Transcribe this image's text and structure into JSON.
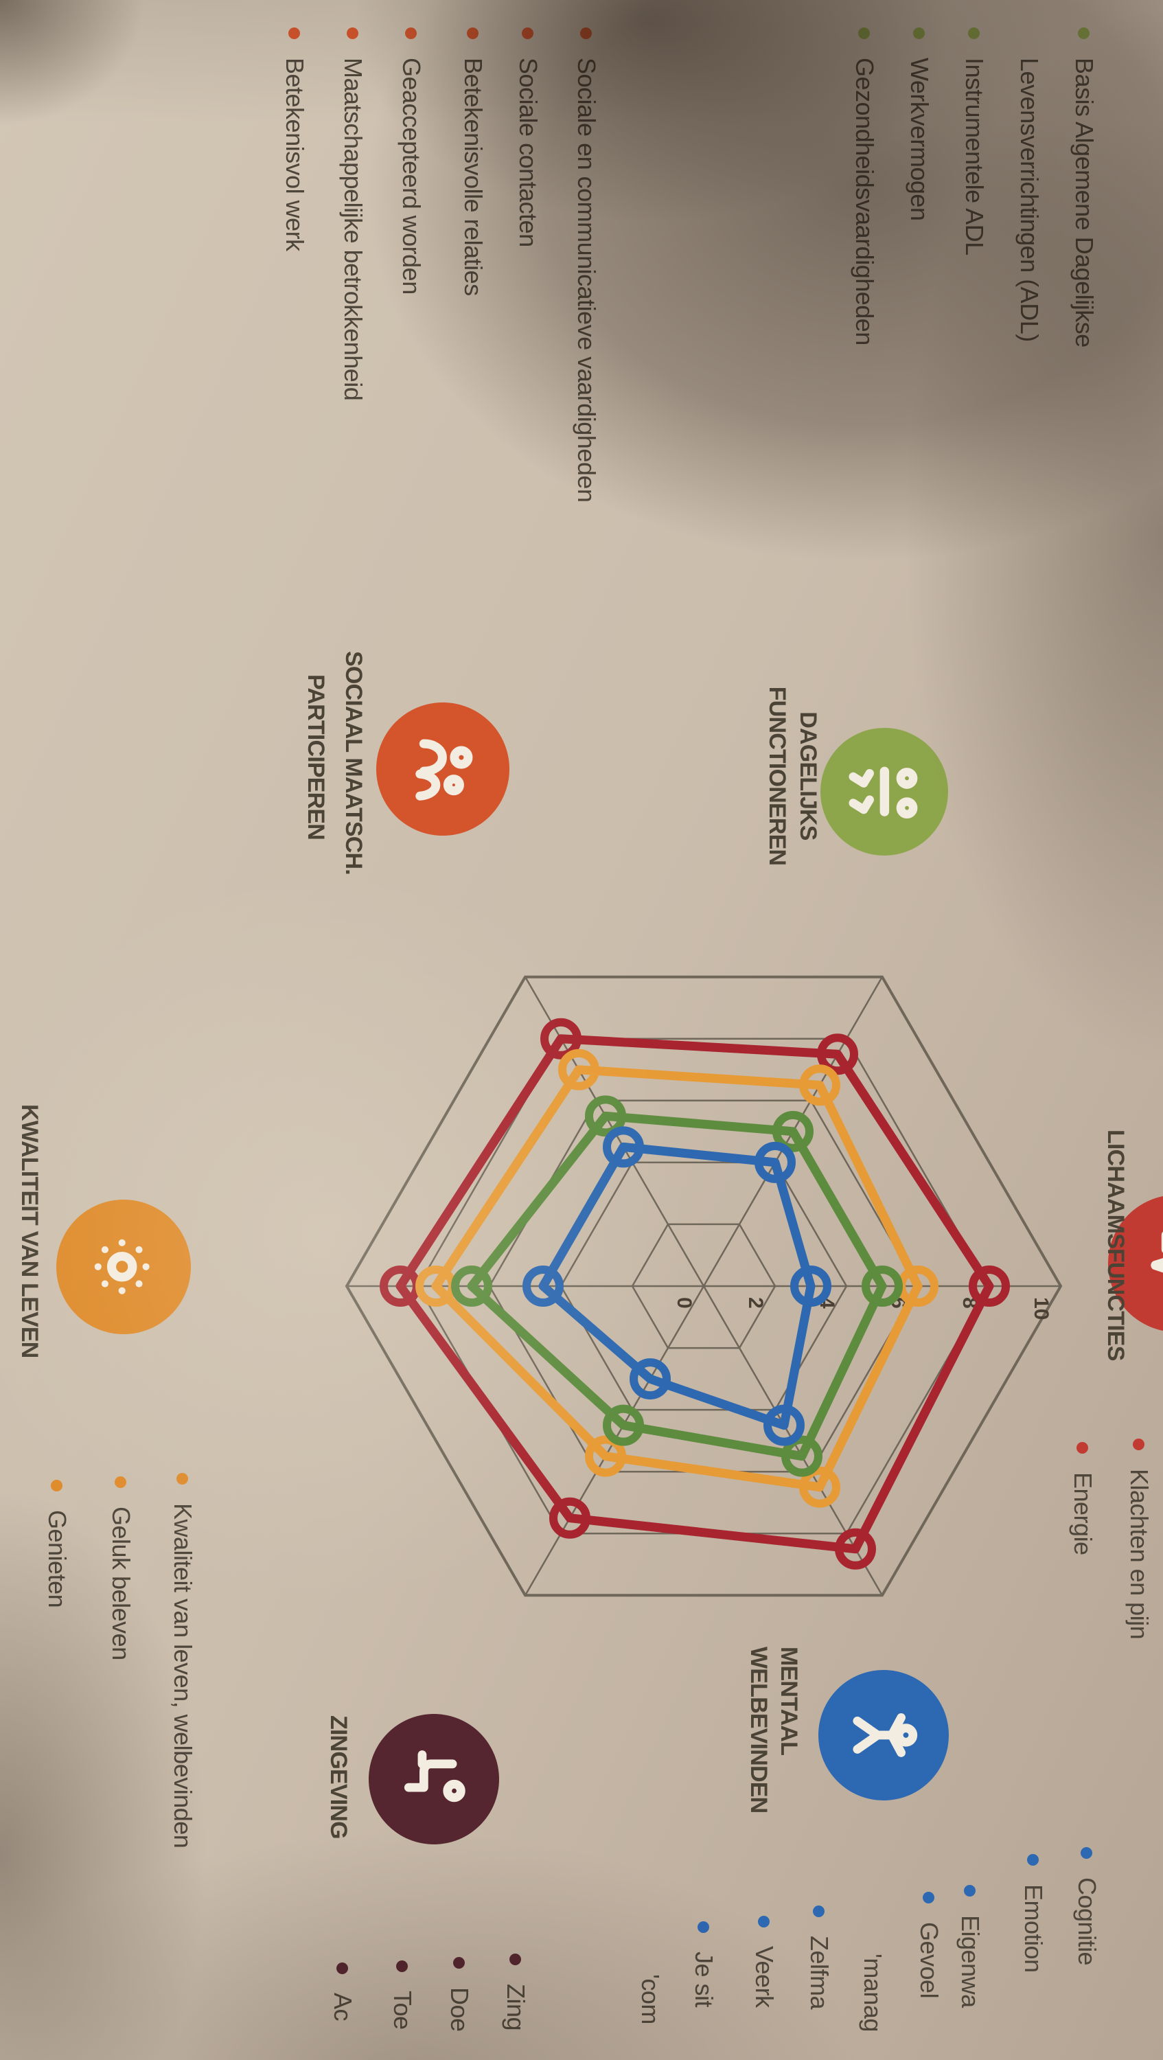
{
  "document": {
    "kind": "positieve-gezondheid-spinnenweb-fotopagina"
  },
  "sections": {
    "dagelijks_functioneren": {
      "label_line1": "DAGELIJKS",
      "label_line2": "FUNCTIONEREN",
      "color": "#8ea64b",
      "items": [
        {
          "text": "Basis Algemene Dagelijkse",
          "bullet": true
        },
        {
          "text": "Levensverrichtingen (ADL)",
          "bullet": false
        },
        {
          "text": "Instrumentele ADL",
          "bullet": true
        },
        {
          "text": "Werkvermogen",
          "bullet": true
        },
        {
          "text": "Gezondheidsvaardigheden",
          "bullet": true
        }
      ]
    },
    "lichaamsfuncties": {
      "label": "LICHAAMSFUNCTIES",
      "color": "#c23b32",
      "items": [
        {
          "text": "Klachten en pijn",
          "bullet": true
        },
        {
          "text": "Energie",
          "bullet": true
        }
      ]
    },
    "mentaal_welbevinden": {
      "label_line1": "MENTAAL",
      "label_line2": "WELBEVINDEN",
      "color": "#2d68b2",
      "items": [
        {
          "text": "Cognitie",
          "bullet": true
        },
        {
          "text": "Emotion",
          "bullet": true
        },
        {
          "text": "Eigenwa",
          "bullet": true
        },
        {
          "text": "Gevoel",
          "bullet": true
        },
        {
          "text": "'manag",
          "bullet": false
        },
        {
          "text": "Zelfma",
          "bullet": true
        },
        {
          "text": "Veerk",
          "bullet": true
        },
        {
          "text": "Je sit",
          "bullet": true
        },
        {
          "text": "'com",
          "bullet": false
        }
      ]
    },
    "zingeving": {
      "label": "ZINGEVING",
      "color": "#55262f",
      "items": [
        {
          "text": "Zing",
          "bullet": true
        },
        {
          "text": "Doe",
          "bullet": true
        },
        {
          "text": "Toe",
          "bullet": true
        },
        {
          "text": "Ac",
          "bullet": true
        }
      ]
    },
    "kwaliteit_van_leven": {
      "label": "KWALITEIT VAN LEVEN",
      "color": "#df8c2d",
      "items": [
        {
          "text": "Kwaliteit van leven, welbevinden",
          "bullet": true
        },
        {
          "text": "Geluk beleven",
          "bullet": true
        },
        {
          "text": "Genieten",
          "bullet": true
        }
      ]
    },
    "sociaal_maatschappelijk_participeren": {
      "label_line1": "SOCIAAL MAATSCH.",
      "label_line2": "PARTICIPEREN",
      "color": "#d4552c",
      "items": [
        {
          "text": "Sociale en communicatieve vaardigheden",
          "bullet": true
        },
        {
          "text": "Sociale contacten",
          "bullet": true
        },
        {
          "text": "Betekenisvolle relaties",
          "bullet": true
        },
        {
          "text": "Geaccepteerd worden",
          "bullet": true
        },
        {
          "text": "Maatschappelijke betrokkenheid",
          "bullet": true
        },
        {
          "text": "Betekenisvol werk",
          "bullet": true
        }
      ]
    }
  },
  "chart_data": {
    "type": "radar",
    "title": "",
    "axes": [
      "Lichaamsfuncties",
      "Mentaal welbevinden",
      "Zingeving",
      "Kwaliteit van leven",
      "Sociaal-maatschappelijk participeren",
      "Dagelijks functioneren"
    ],
    "scale": {
      "min": 0,
      "max": 10,
      "tick_step": 2,
      "tick_labels": [
        "0",
        "2",
        "4",
        "6",
        "8",
        "10"
      ]
    },
    "grid": {
      "rings": [
        2,
        4,
        6,
        8,
        10
      ],
      "color": "#6f675a",
      "spokes": 6
    },
    "legend": "none visible",
    "series": [
      {
        "name": "rood",
        "color": "#a8252f",
        "values": [
          8,
          8.5,
          7.5,
          8.5,
          8,
          7.5
        ]
      },
      {
        "name": "oranje",
        "color": "#e79b36",
        "values": [
          6,
          6.5,
          5.5,
          7.5,
          7,
          6.5
        ]
      },
      {
        "name": "groen",
        "color": "#5d8c3f",
        "values": [
          5,
          5.5,
          4.5,
          6.5,
          5.5,
          5
        ]
      },
      {
        "name": "blauw",
        "color": "#2d68b0",
        "values": [
          3,
          4.5,
          3,
          4.5,
          4.5,
          4
        ]
      }
    ]
  }
}
